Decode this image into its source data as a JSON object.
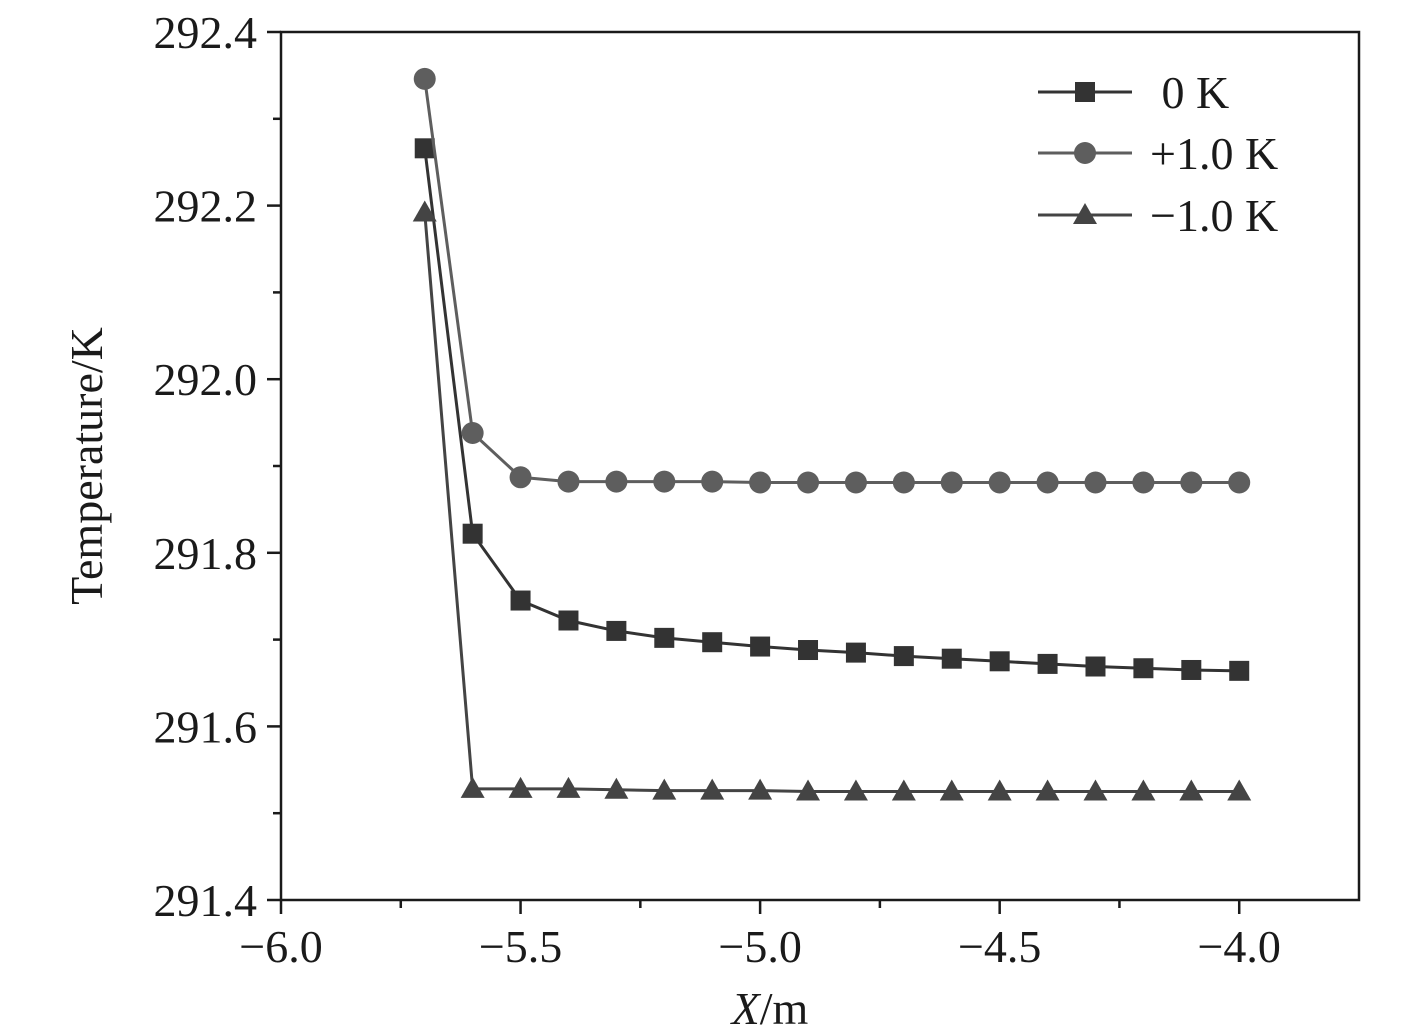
{
  "chart_data": {
    "type": "line",
    "title": "",
    "xlabel_italic": "X",
    "xlabel_rest": "/m",
    "ylabel": "Temperature/K",
    "xlim": [
      -6.0,
      -3.75
    ],
    "ylim": [
      291.4,
      292.4
    ],
    "x_ticks": [
      -6.0,
      -5.5,
      -5.0,
      -4.5,
      -4.0
    ],
    "x_tick_labels": [
      "−6.0",
      "−5.5",
      "−5.0",
      "−4.5",
      "−4.0"
    ],
    "x_minor_ticks": [
      -5.75,
      -5.25,
      -4.75,
      -4.25
    ],
    "y_ticks": [
      291.4,
      291.6,
      291.8,
      292.0,
      292.2,
      292.4
    ],
    "y_tick_labels": [
      "291.4",
      "291.6",
      "291.8",
      "292.0",
      "292.2",
      "292.4"
    ],
    "y_minor_ticks": [
      291.5,
      291.7,
      291.9,
      292.1,
      292.3
    ],
    "grid": false,
    "legend_position": "top-right",
    "x": [
      -5.7,
      -5.6,
      -5.5,
      -5.4,
      -5.3,
      -5.2,
      -5.1,
      -5.0,
      -4.9,
      -4.8,
      -4.7,
      -4.6,
      -4.5,
      -4.4,
      -4.3,
      -4.2,
      -4.1,
      -4.0
    ],
    "series": [
      {
        "name": " 0 K",
        "marker": "square",
        "color": "#333333",
        "values": [
          292.266,
          291.822,
          291.745,
          291.722,
          291.71,
          291.702,
          291.697,
          291.692,
          291.688,
          291.685,
          291.681,
          291.678,
          291.675,
          291.672,
          291.669,
          291.667,
          291.665,
          291.664
        ]
      },
      {
        "name": "+1.0 K",
        "marker": "circle",
        "color": "#5e5e5e",
        "values": [
          292.346,
          291.938,
          291.887,
          291.882,
          291.882,
          291.882,
          291.882,
          291.881,
          291.881,
          291.881,
          291.881,
          291.881,
          291.881,
          291.881,
          291.881,
          291.881,
          291.881,
          291.881
        ]
      },
      {
        "name": "−1.0 K",
        "marker": "triangle",
        "color": "#444444",
        "values": [
          292.192,
          291.528,
          291.528,
          291.528,
          291.527,
          291.526,
          291.526,
          291.526,
          291.525,
          291.525,
          291.525,
          291.525,
          291.525,
          291.525,
          291.525,
          291.525,
          291.525,
          291.525
        ]
      }
    ]
  }
}
